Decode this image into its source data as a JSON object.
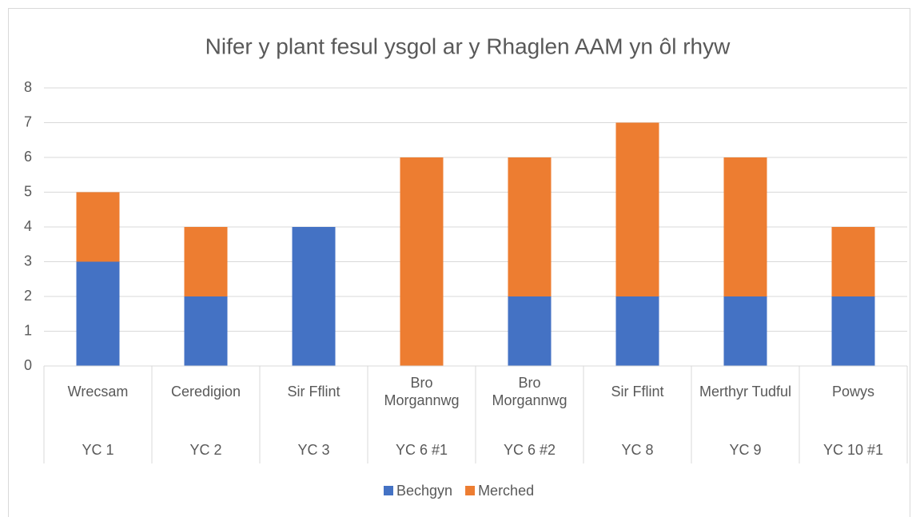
{
  "chart_data": {
    "type": "stacked_bar",
    "title": "Nifer y plant fesul ysgol ar y Rhaglen AAM yn ôl rhyw",
    "categories": [
      "Wrecsam",
      "Ceredigion",
      "Sir Fflint",
      "Bro Morgannwg",
      "Bro Morgannwg",
      "Sir Fflint",
      "Merthyr Tudful",
      "Powys"
    ],
    "category_groups": [
      "YC 1",
      "YC 2",
      "YC 3",
      "YC 6 #1",
      "YC 6 #2",
      "YC 8",
      "YC 9",
      "YC 10 #1"
    ],
    "series": [
      {
        "name": "Bechgyn",
        "color": "#4472c4",
        "values": [
          3,
          2,
          4,
          0,
          2,
          2,
          2,
          2
        ]
      },
      {
        "name": "Merched",
        "color": "#ed7d31",
        "values": [
          2,
          2,
          0,
          6,
          4,
          5,
          4,
          2
        ]
      }
    ],
    "ylim": [
      0,
      8
    ],
    "yticks": [
      0,
      1,
      2,
      3,
      4,
      5,
      6,
      7,
      8
    ],
    "grid": true,
    "legend": "bottom"
  }
}
